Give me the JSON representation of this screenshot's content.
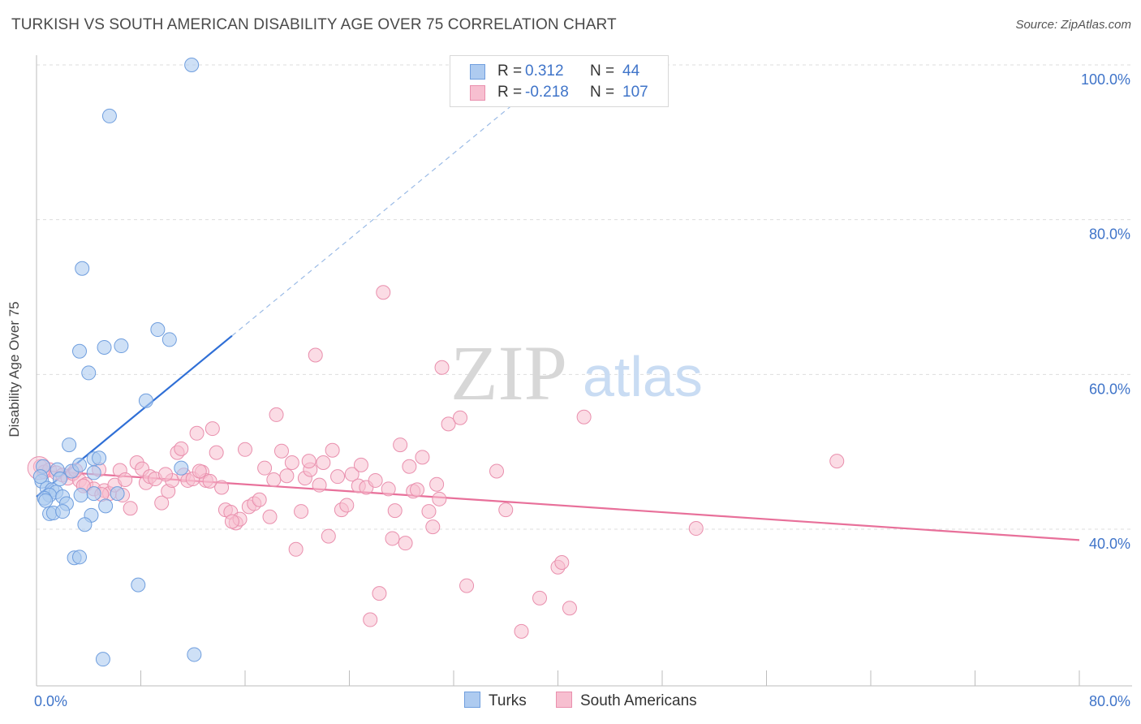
{
  "title": "TURKISH VS SOUTH AMERICAN DISABILITY AGE OVER 75 CORRELATION CHART",
  "source": "Source: ZipAtlas.com",
  "watermark": {
    "zip": "ZIP",
    "atlas": "atlas"
  },
  "legend": {
    "turks": {
      "r_label": "R =",
      "r_value": "0.312",
      "n_label": "N =",
      "n_value": "44"
    },
    "south": {
      "r_label": "R =",
      "r_value": "-0.218",
      "n_label": "N =",
      "n_value": "107"
    }
  },
  "bottom_legend": {
    "turks": "Turks",
    "south": "South Americans"
  },
  "colors": {
    "turks_fill": "#aecbf0",
    "turks_stroke": "#6f9ede",
    "turks_line": "#2f6fd6",
    "south_fill": "#f7bfd0",
    "south_stroke": "#e98fad",
    "south_line": "#e8709a",
    "tick": "#3f74c9",
    "grid": "#dddddd"
  },
  "chart_data": {
    "type": "scatter",
    "title": "TURKISH VS SOUTH AMERICAN DISABILITY AGE OVER 75 CORRELATION CHART",
    "xlabel": "",
    "ylabel": "Disability Age Over 75",
    "xlim": [
      0,
      80
    ],
    "ylim": [
      21,
      102
    ],
    "x_ticks": [
      0,
      80
    ],
    "x_tick_labels": [
      "0.0%",
      "80.0%"
    ],
    "y_ticks": [
      40,
      60,
      80,
      100
    ],
    "y_tick_labels": [
      "40.0%",
      "60.0%",
      "80.0%",
      "100.0%"
    ],
    "series": [
      {
        "name": "Turks",
        "r": 0.312,
        "n": 44,
        "trend": {
          "x0": 0,
          "y0": 44.2,
          "x1": 15.0,
          "y1": 65.0,
          "dashed_to_x": 38.0,
          "dashed_to_y": 96.9
        },
        "points": [
          [
            11.9,
            100.0
          ],
          [
            5.6,
            93.4
          ],
          [
            3.5,
            73.7
          ],
          [
            9.3,
            65.8
          ],
          [
            10.2,
            64.5
          ],
          [
            3.3,
            63.0
          ],
          [
            5.2,
            63.5
          ],
          [
            6.5,
            63.7
          ],
          [
            4.0,
            60.2
          ],
          [
            8.4,
            56.6
          ],
          [
            2.5,
            50.9
          ],
          [
            4.4,
            49.1
          ],
          [
            4.8,
            49.2
          ],
          [
            0.5,
            48.1
          ],
          [
            1.6,
            47.7
          ],
          [
            2.7,
            47.5
          ],
          [
            3.3,
            48.3
          ],
          [
            4.4,
            47.3
          ],
          [
            0.4,
            46.2
          ],
          [
            0.8,
            45.3
          ],
          [
            1.2,
            45.1
          ],
          [
            1.5,
            44.8
          ],
          [
            1.0,
            44.4
          ],
          [
            0.6,
            44.0
          ],
          [
            2.0,
            44.2
          ],
          [
            3.4,
            44.4
          ],
          [
            4.4,
            44.6
          ],
          [
            6.2,
            44.6
          ],
          [
            0.7,
            43.7
          ],
          [
            2.3,
            43.3
          ],
          [
            5.3,
            43.0
          ],
          [
            1.0,
            42.0
          ],
          [
            1.3,
            42.1
          ],
          [
            2.0,
            42.3
          ],
          [
            4.2,
            41.8
          ],
          [
            3.7,
            40.6
          ],
          [
            0.3,
            46.8
          ],
          [
            1.8,
            46.5
          ],
          [
            2.9,
            36.3
          ],
          [
            3.3,
            36.4
          ],
          [
            7.8,
            32.8
          ],
          [
            11.1,
            47.9
          ],
          [
            12.1,
            23.8
          ],
          [
            5.1,
            23.2
          ]
        ]
      },
      {
        "name": "South Americans",
        "r": -0.218,
        "n": 107,
        "trend": {
          "x0": 0,
          "y0": 47.6,
          "x1": 80.0,
          "y1": 38.6
        },
        "points": [
          [
            0.3,
            48.1
          ],
          [
            0.6,
            47.4
          ],
          [
            1.0,
            47.7
          ],
          [
            1.5,
            47.3
          ],
          [
            2.0,
            47.0
          ],
          [
            2.4,
            46.6
          ],
          [
            2.8,
            47.2
          ],
          [
            3.3,
            46.3
          ],
          [
            3.8,
            45.8
          ],
          [
            4.4,
            45.2
          ],
          [
            4.8,
            47.7
          ],
          [
            5.2,
            45.0
          ],
          [
            5.6,
            44.6
          ],
          [
            6.0,
            45.7
          ],
          [
            6.4,
            47.6
          ],
          [
            6.8,
            46.4
          ],
          [
            7.2,
            42.7
          ],
          [
            7.7,
            48.6
          ],
          [
            8.1,
            47.8
          ],
          [
            8.4,
            46.0
          ],
          [
            8.7,
            46.8
          ],
          [
            9.1,
            46.5
          ],
          [
            9.6,
            43.4
          ],
          [
            10.1,
            44.9
          ],
          [
            10.4,
            46.3
          ],
          [
            10.8,
            49.9
          ],
          [
            11.1,
            50.4
          ],
          [
            11.3,
            47.0
          ],
          [
            11.6,
            46.3
          ],
          [
            12.0,
            46.5
          ],
          [
            12.3,
            52.4
          ],
          [
            12.7,
            47.4
          ],
          [
            13.0,
            46.3
          ],
          [
            13.5,
            53.0
          ],
          [
            13.8,
            49.9
          ],
          [
            14.2,
            45.4
          ],
          [
            14.5,
            42.5
          ],
          [
            14.9,
            42.2
          ],
          [
            15.3,
            40.8
          ],
          [
            15.6,
            41.3
          ],
          [
            16.0,
            50.3
          ],
          [
            16.3,
            42.9
          ],
          [
            16.7,
            43.3
          ],
          [
            17.1,
            43.8
          ],
          [
            17.5,
            47.9
          ],
          [
            17.9,
            41.6
          ],
          [
            18.2,
            46.4
          ],
          [
            18.4,
            54.8
          ],
          [
            18.8,
            50.1
          ],
          [
            19.2,
            46.9
          ],
          [
            19.6,
            48.6
          ],
          [
            19.9,
            37.4
          ],
          [
            20.3,
            42.3
          ],
          [
            20.6,
            46.6
          ],
          [
            21.0,
            47.7
          ],
          [
            21.4,
            62.5
          ],
          [
            21.7,
            45.7
          ],
          [
            22.0,
            48.6
          ],
          [
            22.4,
            39.1
          ],
          [
            22.7,
            50.2
          ],
          [
            23.1,
            46.8
          ],
          [
            23.4,
            42.5
          ],
          [
            23.8,
            43.1
          ],
          [
            24.2,
            47.1
          ],
          [
            24.7,
            45.6
          ],
          [
            24.9,
            48.3
          ],
          [
            25.3,
            45.4
          ],
          [
            25.6,
            28.3
          ],
          [
            26.3,
            31.7
          ],
          [
            26.6,
            70.6
          ],
          [
            27.0,
            45.2
          ],
          [
            27.3,
            38.8
          ],
          [
            27.5,
            42.4
          ],
          [
            27.9,
            50.9
          ],
          [
            28.3,
            38.2
          ],
          [
            28.6,
            48.1
          ],
          [
            28.9,
            44.9
          ],
          [
            29.2,
            45.1
          ],
          [
            29.6,
            49.3
          ],
          [
            30.1,
            42.3
          ],
          [
            30.4,
            40.3
          ],
          [
            30.7,
            45.8
          ],
          [
            30.9,
            43.9
          ],
          [
            31.1,
            60.9
          ],
          [
            31.6,
            53.6
          ],
          [
            32.5,
            54.4
          ],
          [
            33.0,
            32.7
          ],
          [
            35.3,
            47.5
          ],
          [
            36.0,
            42.5
          ],
          [
            37.2,
            26.8
          ],
          [
            38.6,
            31.1
          ],
          [
            40.0,
            35.1
          ],
          [
            40.3,
            35.7
          ],
          [
            40.9,
            29.8
          ],
          [
            42.0,
            54.5
          ],
          [
            50.6,
            40.1
          ],
          [
            61.4,
            48.8
          ],
          [
            3.0,
            47.6
          ],
          [
            5.0,
            44.5
          ],
          [
            9.9,
            47.1
          ],
          [
            12.5,
            47.5
          ],
          [
            15.0,
            41.0
          ],
          [
            20.9,
            48.8
          ],
          [
            26.0,
            46.3
          ],
          [
            3.6,
            45.6
          ],
          [
            6.6,
            44.4
          ],
          [
            13.3,
            46.2
          ]
        ]
      }
    ]
  }
}
